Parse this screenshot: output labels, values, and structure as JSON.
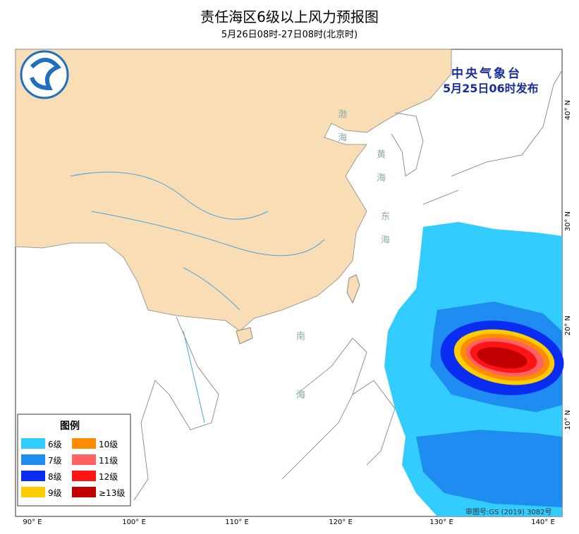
{
  "header": {
    "title": "责任海区6级以上风力预报图",
    "subtitle": "5月26日08时-27日08时(北京时)"
  },
  "issuer": {
    "name": "中央气象台",
    "time": "5月25日06时发布"
  },
  "legend": {
    "title": "图例",
    "items": [
      {
        "label": "6级",
        "color": "#33ccff"
      },
      {
        "label": "7级",
        "color": "#1e8cf0"
      },
      {
        "label": "8级",
        "color": "#0a2cf0"
      },
      {
        "label": "9级",
        "color": "#ffcc00"
      },
      {
        "label": "10级",
        "color": "#ff8c00"
      },
      {
        "label": "11级",
        "color": "#ff6262"
      },
      {
        "label": "12级",
        "color": "#ff1414"
      },
      {
        "label": "≥13级",
        "color": "#c00000"
      }
    ]
  },
  "axes": {
    "lon": [
      "90° E",
      "100° E",
      "110° E",
      "120° E",
      "130° E",
      "140° E"
    ],
    "lat": [
      "40° N",
      "30° N",
      "20° N",
      "10° N"
    ]
  },
  "seas": [
    "渤海",
    "黄海",
    "东海",
    "南海"
  ],
  "footer": "审图号:GS (2019) 3082号"
}
